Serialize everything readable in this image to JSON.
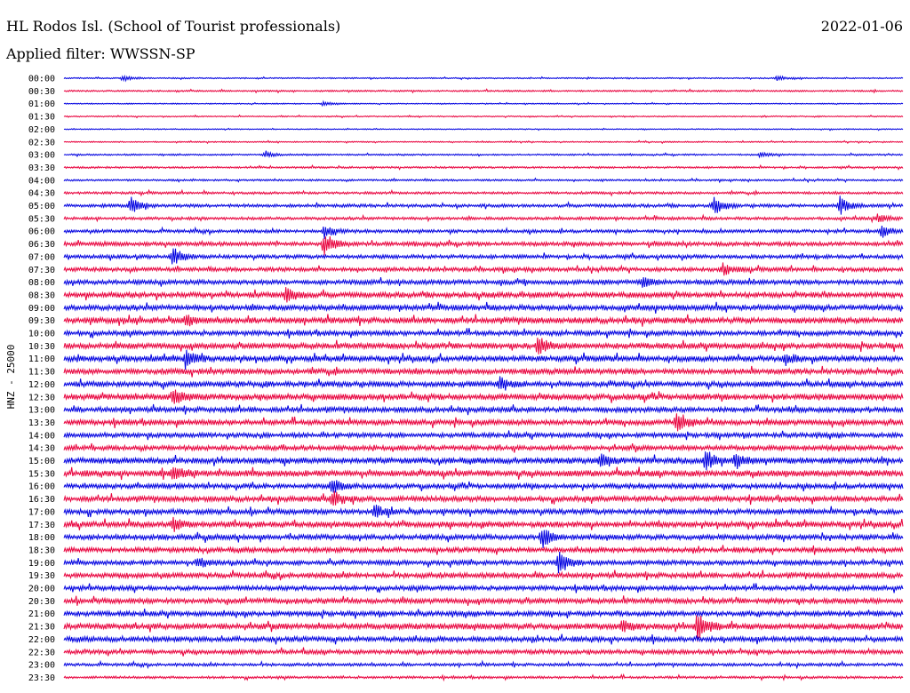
{
  "header": {
    "station": "HL Rodos Isl. (School of Tourist professionals)",
    "date": "2022-01-06",
    "filter": "Applied filter: WWSSN-SP"
  },
  "colors": {
    "even_trace": "#0000e0",
    "odd_trace": "#e8003c"
  },
  "chart_data": {
    "type": "line",
    "title": "HL Rodos Isl. (School of Tourist professionals)",
    "ylabel": "HNZ - 25000",
    "xlabel": "",
    "grid": false,
    "legend": "none",
    "series_names": [],
    "categories": [
      "00:00",
      "00:30",
      "01:00",
      "01:30",
      "02:00",
      "02:30",
      "03:00",
      "03:30",
      "04:00",
      "04:30",
      "05:00",
      "05:30",
      "06:00",
      "06:30",
      "07:00",
      "07:30",
      "08:00",
      "08:30",
      "09:00",
      "09:30",
      "10:00",
      "10:30",
      "11:00",
      "11:30",
      "12:00",
      "12:30",
      "13:00",
      "13:30",
      "14:00",
      "14:30",
      "15:00",
      "15:30",
      "16:00",
      "16:30",
      "17:00",
      "17:30",
      "18:00",
      "18:30",
      "19:00",
      "19:30",
      "20:00",
      "20:30",
      "21:00",
      "21:30",
      "22:00",
      "22:30",
      "23:00",
      "23:30"
    ],
    "noise_level": [
      0.5,
      0.6,
      0.4,
      0.45,
      0.4,
      0.45,
      0.6,
      0.7,
      0.7,
      0.9,
      1.2,
      1.1,
      1.2,
      1.5,
      1.4,
      1.5,
      1.7,
      2.0,
      2.0,
      2.2,
      1.8,
      2.1,
      2.1,
      2.0,
      2.0,
      2.2,
      1.9,
      2.0,
      1.7,
      1.8,
      2.2,
      2.3,
      1.8,
      2.0,
      1.9,
      2.1,
      1.9,
      1.8,
      1.7,
      1.9,
      1.7,
      1.9,
      1.8,
      2.2,
      1.9,
      1.6,
      1.1,
      0.9
    ],
    "events": [
      {
        "line": "00:00",
        "pos": 0.07,
        "amp": 3
      },
      {
        "line": "00:00",
        "pos": 0.85,
        "amp": 3
      },
      {
        "line": "01:00",
        "pos": 0.31,
        "amp": 2.5
      },
      {
        "line": "03:00",
        "pos": 0.24,
        "amp": 4
      },
      {
        "line": "03:00",
        "pos": 0.83,
        "amp": 3
      },
      {
        "line": "05:00",
        "pos": 0.08,
        "amp": 10
      },
      {
        "line": "05:00",
        "pos": 0.775,
        "amp": 11
      },
      {
        "line": "05:00",
        "pos": 0.925,
        "amp": 10
      },
      {
        "line": "05:30",
        "pos": 0.97,
        "amp": 5
      },
      {
        "line": "06:00",
        "pos": 0.31,
        "amp": 8
      },
      {
        "line": "06:00",
        "pos": 0.975,
        "amp": 7
      },
      {
        "line": "06:30",
        "pos": 0.31,
        "amp": 14
      },
      {
        "line": "07:00",
        "pos": 0.13,
        "amp": 12
      },
      {
        "line": "07:30",
        "pos": 0.785,
        "amp": 7
      },
      {
        "line": "08:00",
        "pos": 0.69,
        "amp": 6
      },
      {
        "line": "08:30",
        "pos": 0.265,
        "amp": 9
      },
      {
        "line": "09:30",
        "pos": 0.145,
        "amp": 7
      },
      {
        "line": "10:30",
        "pos": 0.565,
        "amp": 10
      },
      {
        "line": "11:00",
        "pos": 0.145,
        "amp": 12
      },
      {
        "line": "11:00",
        "pos": 0.86,
        "amp": 6
      },
      {
        "line": "12:00",
        "pos": 0.52,
        "amp": 8
      },
      {
        "line": "12:30",
        "pos": 0.13,
        "amp": 9
      },
      {
        "line": "13:30",
        "pos": 0.73,
        "amp": 11
      },
      {
        "line": "15:00",
        "pos": 0.765,
        "amp": 14
      },
      {
        "line": "15:00",
        "pos": 0.8,
        "amp": 9
      },
      {
        "line": "15:00",
        "pos": 0.64,
        "amp": 8
      },
      {
        "line": "15:30",
        "pos": 0.13,
        "amp": 8
      },
      {
        "line": "16:00",
        "pos": 0.32,
        "amp": 9
      },
      {
        "line": "16:30",
        "pos": 0.32,
        "amp": 10
      },
      {
        "line": "17:00",
        "pos": 0.37,
        "amp": 8
      },
      {
        "line": "17:30",
        "pos": 0.13,
        "amp": 8
      },
      {
        "line": "18:00",
        "pos": 0.57,
        "amp": 13
      },
      {
        "line": "19:00",
        "pos": 0.59,
        "amp": 13
      },
      {
        "line": "19:00",
        "pos": 0.16,
        "amp": 6
      },
      {
        "line": "21:30",
        "pos": 0.755,
        "amp": 16
      },
      {
        "line": "21:30",
        "pos": 0.665,
        "amp": 7
      }
    ]
  }
}
